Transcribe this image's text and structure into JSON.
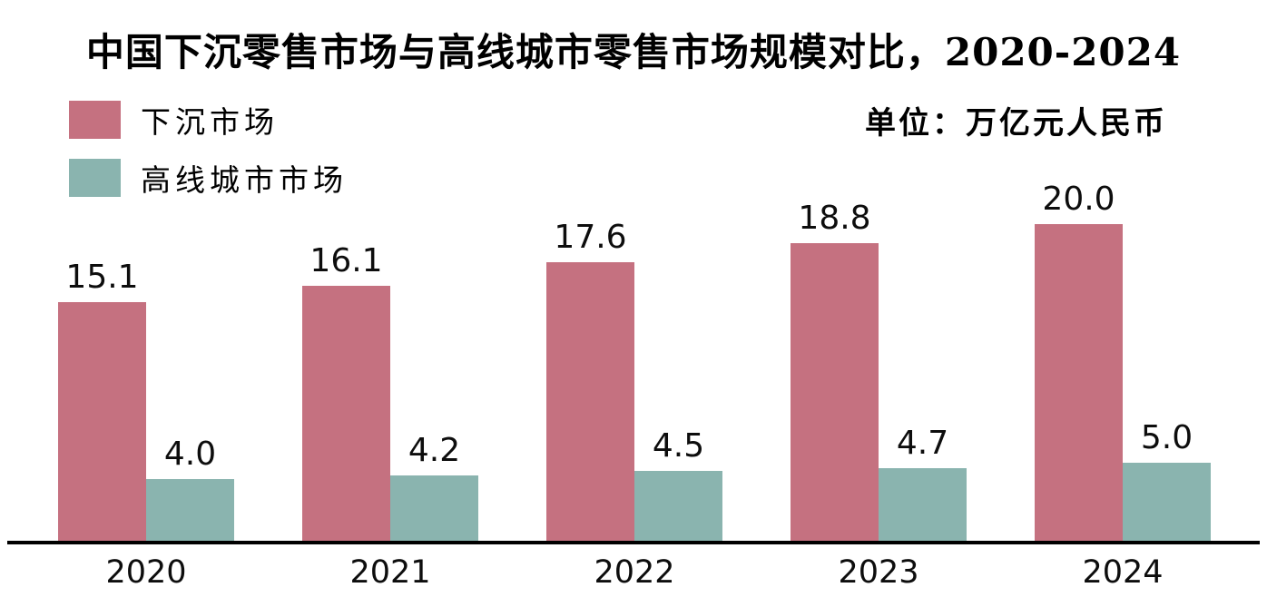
{
  "title": "中国下沉零售市场与高线城市零售市场规模对比，2020-2024",
  "unit_label": "单位：万亿元人民币",
  "legend": [
    {
      "label": "下沉市场",
      "color": "#c57180"
    },
    {
      "label": "高线城市市场",
      "color": "#8ab4af"
    }
  ],
  "colors": {
    "sinking_market": "#c57180",
    "high_tier_market": "#8ab4af",
    "axis": "#000000",
    "text": "#0d0d0d",
    "background": "#ffffff"
  },
  "chart_data": {
    "type": "bar",
    "title": "中国下沉零售市场与高线城市零售市场规模对比，2020-2024",
    "unit": "万亿元人民币",
    "categories": [
      "2020",
      "2021",
      "2022",
      "2023",
      "2024"
    ],
    "series": [
      {
        "name": "下沉市场",
        "color": "#c57180",
        "values": [
          15.1,
          16.1,
          17.6,
          18.8,
          20.0
        ]
      },
      {
        "name": "高线城市市场",
        "color": "#8ab4af",
        "values": [
          4.0,
          4.2,
          4.5,
          4.7,
          5.0
        ]
      }
    ],
    "value_labels_shown": true,
    "value_label_decimals": 1,
    "xlabel": "",
    "ylabel": "",
    "ylim": [
      0,
      22
    ],
    "grid": false,
    "legend_position": "top-left",
    "axis_lines": [
      "bottom"
    ]
  }
}
